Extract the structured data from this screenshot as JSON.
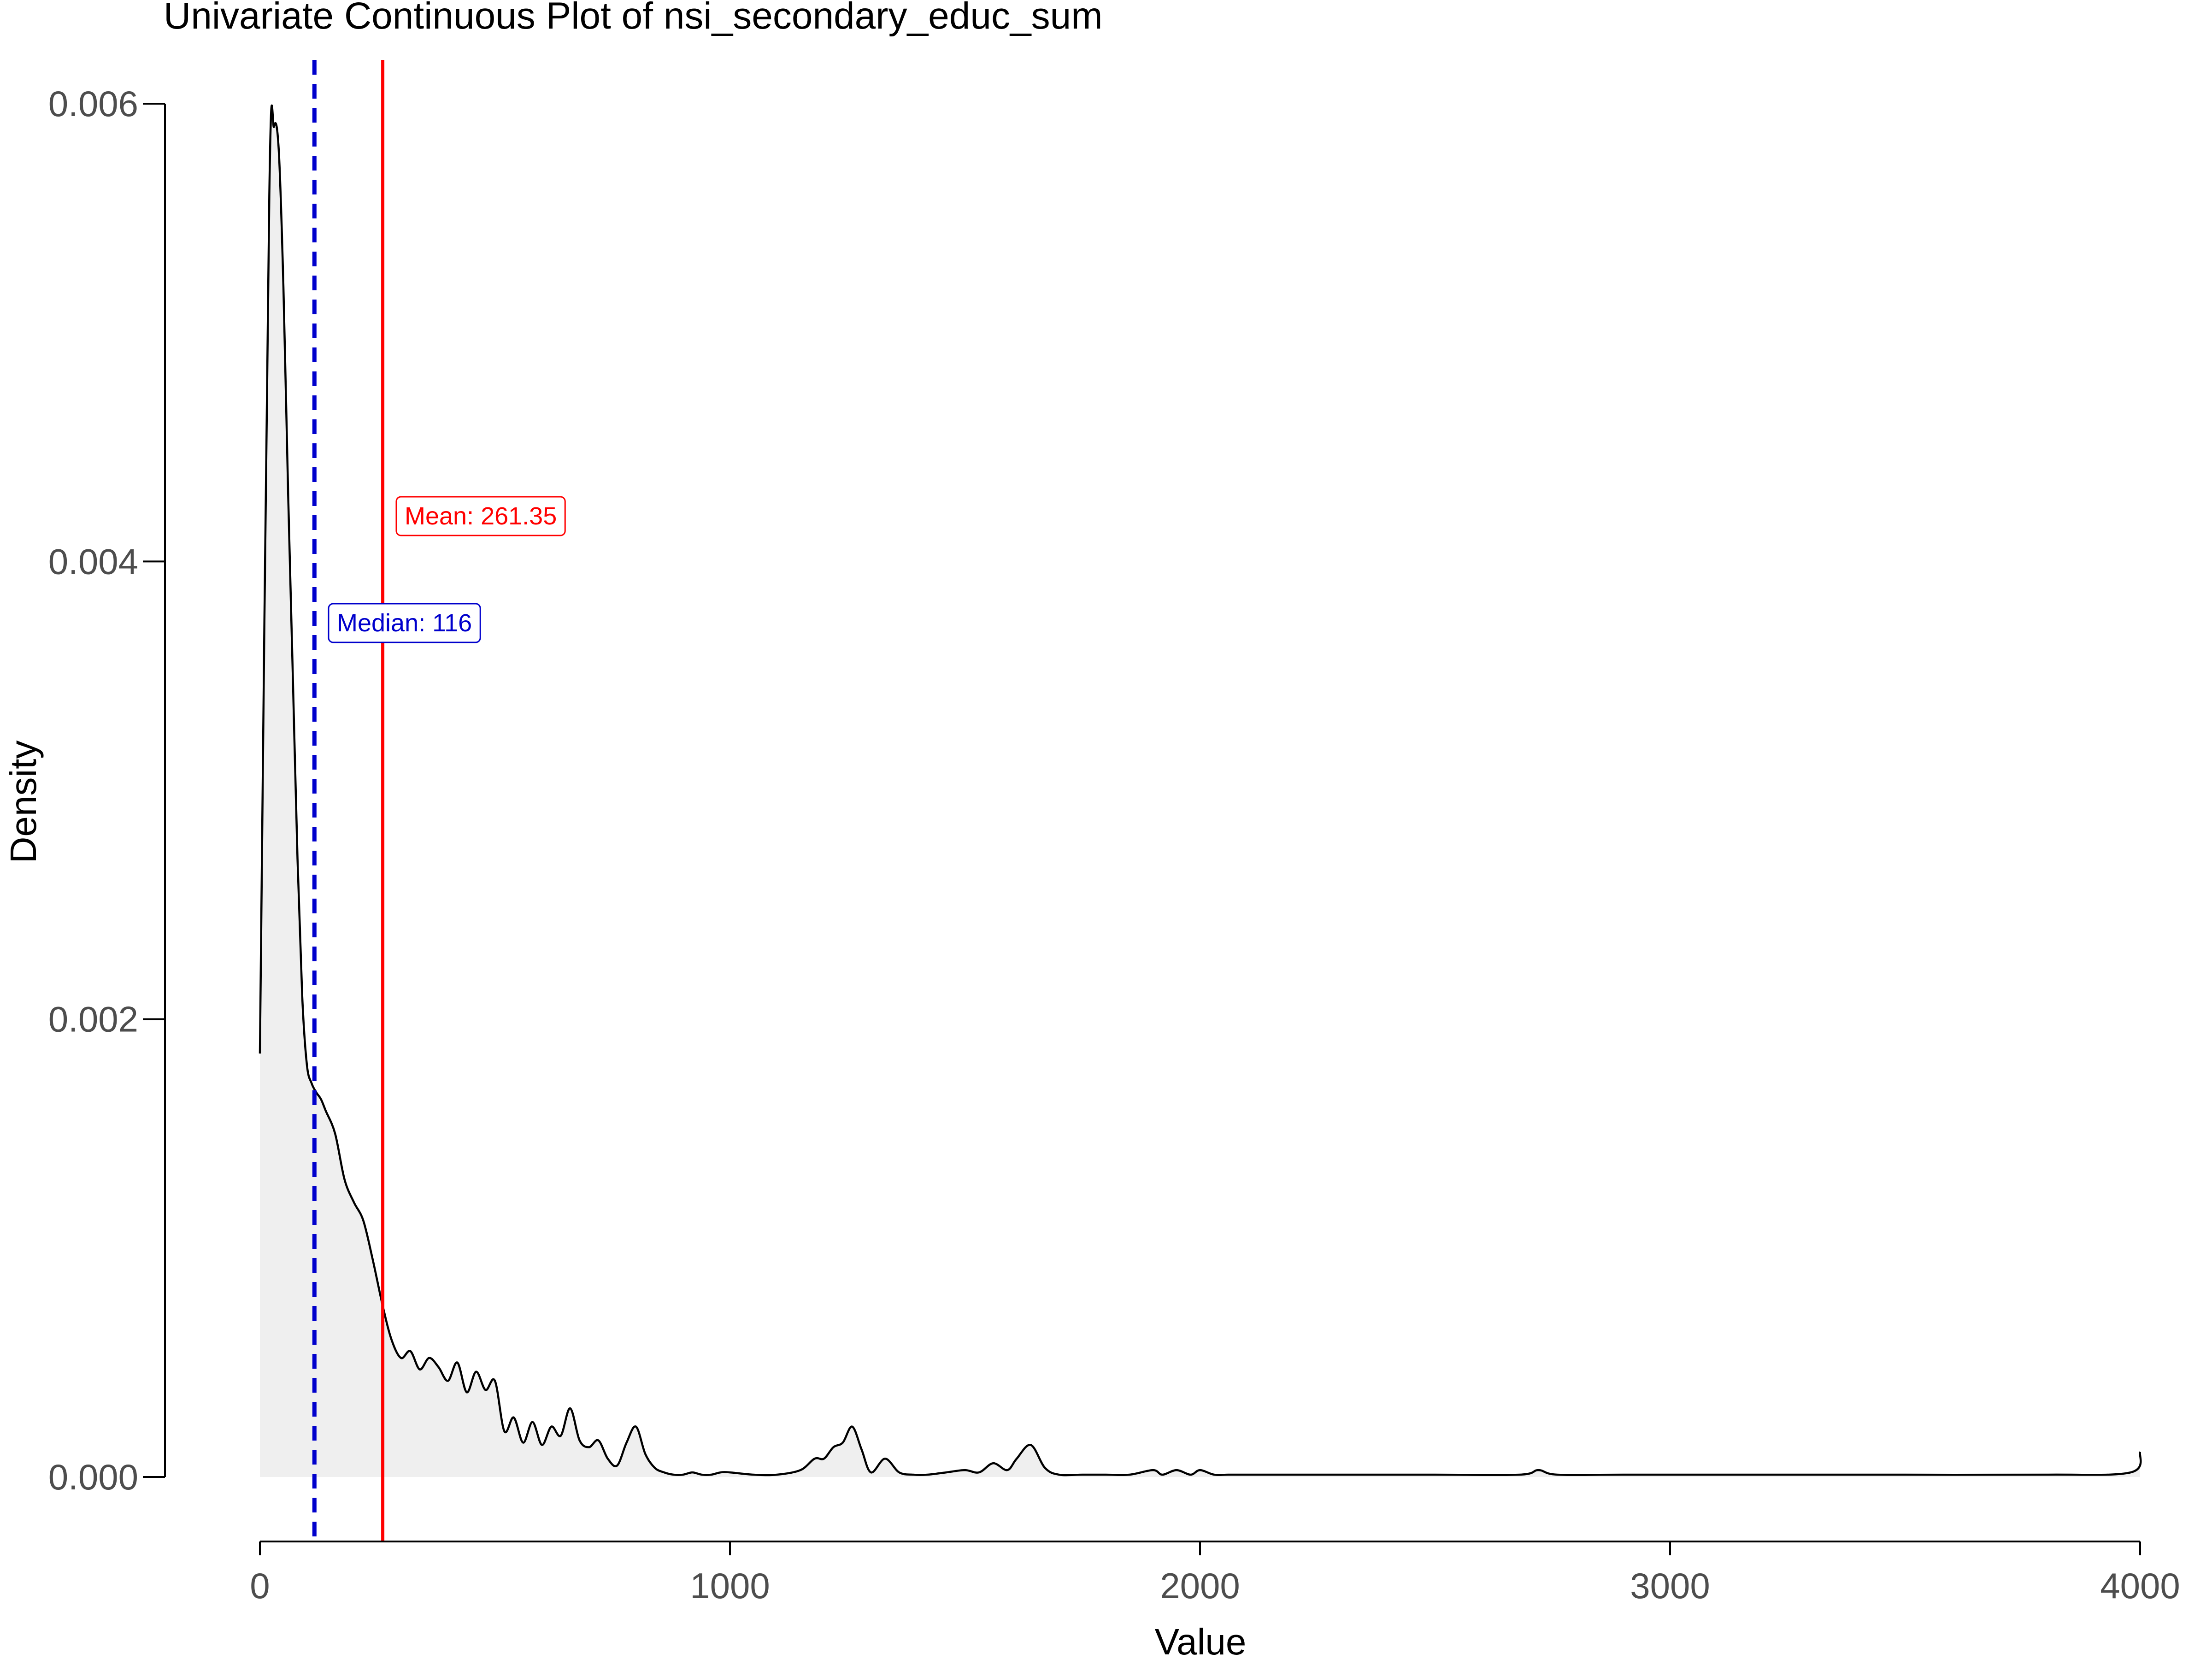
{
  "chart_data": {
    "type": "area",
    "title": "Univariate Continuous Plot of nsi_secondary_educ_sum",
    "xlabel": "Value",
    "ylabel": "Density",
    "xlim": [
      0,
      4000
    ],
    "ylim": [
      0,
      0.006
    ],
    "x_ticks": [
      "0",
      "1000",
      "2000",
      "3000",
      "4000"
    ],
    "y_ticks": [
      "0.000",
      "0.002",
      "0.004",
      "0.006"
    ],
    "grid": false,
    "series": [
      {
        "x": [
          0,
          20,
          30,
          40,
          50,
          60,
          70,
          80,
          90,
          100,
          110,
          120,
          130,
          140,
          160,
          180,
          200,
          220,
          240,
          261,
          280,
          300,
          320,
          340,
          360,
          380,
          400,
          420,
          440,
          460,
          480,
          500,
          520,
          540,
          560,
          580,
          600,
          620,
          640,
          660,
          680,
          700,
          720,
          740,
          760,
          780,
          800,
          820,
          840,
          860,
          880,
          900,
          920,
          940,
          960,
          980,
          1000,
          1050,
          1100,
          1150,
          1180,
          1200,
          1220,
          1240,
          1260,
          1280,
          1300,
          1330,
          1360,
          1390,
          1420,
          1460,
          1500,
          1530,
          1560,
          1590,
          1610,
          1640,
          1670,
          1700,
          1750,
          1800,
          1850,
          1900,
          1920,
          1950,
          1980,
          2000,
          2030,
          2060,
          2100,
          2300,
          2500,
          2680,
          2720,
          2760,
          2900,
          3200,
          3500,
          3800,
          3980,
          4000
        ],
        "y": [
          0.00185,
          0.0056,
          0.0059,
          0.0058,
          0.0052,
          0.0043,
          0.0035,
          0.0027,
          0.0021,
          0.0018,
          0.00172,
          0.00168,
          0.00165,
          0.0016,
          0.0015,
          0.0013,
          0.0012,
          0.00112,
          0.00095,
          0.00075,
          0.0006,
          0.00052,
          0.00055,
          0.00047,
          0.00052,
          0.00048,
          0.00042,
          0.0005,
          0.00037,
          0.00046,
          0.00038,
          0.00042,
          0.0002,
          0.00026,
          0.00015,
          0.00024,
          0.00014,
          0.00022,
          0.00018,
          0.0003,
          0.00016,
          0.00013,
          0.00016,
          8e-05,
          5e-05,
          0.00015,
          0.00022,
          0.0001,
          4e-05,
          2e-05,
          1e-05,
          1e-05,
          2e-05,
          1e-05,
          1e-05,
          2e-05,
          2e-05,
          1e-05,
          1e-05,
          3e-05,
          8e-05,
          8e-05,
          0.00013,
          0.00015,
          0.00022,
          0.00012,
          2e-05,
          8e-05,
          2e-05,
          1e-05,
          1e-05,
          2e-05,
          3e-05,
          2e-05,
          6e-05,
          3e-05,
          8e-05,
          0.00014,
          4e-05,
          1e-05,
          1e-05,
          1e-05,
          1e-05,
          3e-05,
          1e-05,
          3e-05,
          1e-05,
          3e-05,
          1e-05,
          1e-05,
          1e-05,
          1e-05,
          1e-05,
          1e-05,
          3e-05,
          1e-05,
          1e-05,
          1e-05,
          1e-05,
          1e-05,
          2e-05,
          0.00011
        ]
      }
    ],
    "mean": 261.35,
    "median": 116,
    "mean_label": "Mean: 261.35",
    "median_label": "Median: 116",
    "colors": {
      "curve": "#000000",
      "fill": "#efefef",
      "mean": "#ff0000",
      "median": "#0000cc",
      "axis": "#000000",
      "tick_text": "#4d4d4d"
    }
  }
}
